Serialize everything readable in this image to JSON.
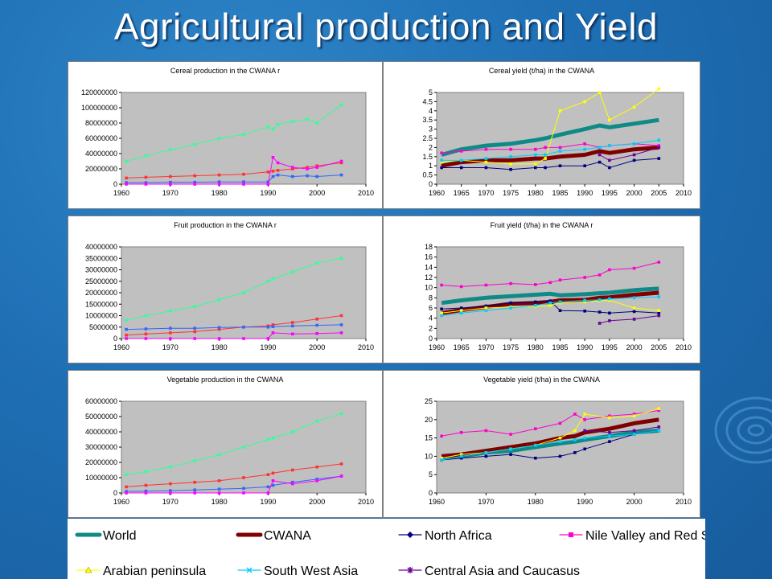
{
  "title": "Agricultural production and Yield",
  "colors": {
    "World": "#0f8a86",
    "CWANA": "#800000",
    "North Africa": "#000080",
    "Nile Valley and Red S": "#ff00cc",
    "Arabian peninsula": "#ffff00",
    "South West Asia": "#00ccff",
    "Central Asia and Caucasus": "#660099",
    "Prod Green": "#33ff99",
    "Prod Red": "#ff3333",
    "Prod Blue": "#3366ff",
    "Prod Magenta": "#ff00ff"
  },
  "legend": [
    {
      "label": "World",
      "marker": "thick",
      "color": "#0f8a86"
    },
    {
      "label": "CWANA",
      "marker": "thick",
      "color": "#800000"
    },
    {
      "label": "North Africa",
      "marker": "diamond",
      "color": "#000080"
    },
    {
      "label": "Nile Valley and Red S",
      "marker": "square",
      "color": "#ff00cc"
    },
    {
      "label": "Arabian peninsula",
      "marker": "triangle",
      "color": "#ffff00"
    },
    {
      "label": "South West Asia",
      "marker": "cross",
      "color": "#00ccff"
    },
    {
      "label": "Central Asia and Caucasus",
      "marker": "star",
      "color": "#660099"
    }
  ],
  "chart_data": [
    {
      "type": "line",
      "title": "Cereal production in the CWANA r",
      "x": [
        1961,
        1965,
        1970,
        1975,
        1980,
        1985,
        1990,
        1991,
        1992,
        1995,
        1998,
        2000,
        2005
      ],
      "xticks": [
        1960,
        1970,
        1980,
        1990,
        2000,
        2010
      ],
      "yticks": [
        "0",
        "20000000",
        "40000000",
        "60000000",
        "80000000",
        "100000000",
        "120000000"
      ],
      "xlim": [
        1960,
        2010
      ],
      "ylim": [
        0,
        120000000
      ],
      "series": [
        {
          "color": "Prod Green",
          "values": [
            30000000,
            37000000,
            45000000,
            52000000,
            60000000,
            65000000,
            75000000,
            72000000,
            78000000,
            82000000,
            85000000,
            80000000,
            104000000
          ]
        },
        {
          "color": "Prod Red",
          "values": [
            8000000,
            9000000,
            10000000,
            11000000,
            12000000,
            13000000,
            16000000,
            17000000,
            18000000,
            20000000,
            22000000,
            24000000,
            28000000
          ]
        },
        {
          "color": "Prod Blue",
          "values": [
            2000000,
            2000000,
            2500000,
            2500000,
            3000000,
            3000000,
            3000000,
            10000000,
            12000000,
            10000000,
            11000000,
            10000000,
            12000000
          ]
        },
        {
          "color": "Prod Magenta",
          "values": [
            0,
            0,
            0,
            0,
            0,
            0,
            0,
            35000000,
            28000000,
            22000000,
            20000000,
            22000000,
            30000000
          ]
        }
      ]
    },
    {
      "type": "line",
      "title": "Cereal yield (t/ha) in the CWANA",
      "x": [
        1961,
        1965,
        1970,
        1975,
        1980,
        1982,
        1985,
        1990,
        1993,
        1995,
        2000,
        2005
      ],
      "xticks": [
        1960,
        1965,
        1970,
        1975,
        1980,
        1985,
        1990,
        1995,
        2000,
        2005,
        2010
      ],
      "yticks": [
        "0",
        "0.5",
        "1",
        "1.5",
        "2",
        "2.5",
        "3",
        "3.5",
        "4",
        "4.5",
        "5"
      ],
      "xlim": [
        1960,
        2010
      ],
      "ylim": [
        0,
        5
      ],
      "series": [
        {
          "color": "World",
          "values": [
            1.6,
            1.9,
            2.1,
            2.2,
            2.4,
            2.5,
            2.7,
            3.0,
            3.2,
            3.1,
            3.3,
            3.5
          ]
        },
        {
          "color": "CWANA",
          "values": [
            1.0,
            1.2,
            1.3,
            1.3,
            1.4,
            1.4,
            1.5,
            1.6,
            1.8,
            1.7,
            1.9,
            2.0
          ]
        },
        {
          "color": "North Africa",
          "values": [
            0.9,
            0.9,
            0.9,
            0.8,
            0.9,
            0.9,
            1.0,
            1.0,
            1.2,
            0.9,
            1.3,
            1.4
          ]
        },
        {
          "color": "Nile Valley and Red S",
          "values": [
            1.7,
            1.8,
            1.9,
            1.9,
            1.9,
            2.0,
            2.0,
            2.2,
            2.0,
            2.1,
            2.2,
            2.1
          ]
        },
        {
          "color": "Arabian peninsula",
          "values": [
            1.2,
            1.3,
            1.2,
            1.1,
            1.1,
            1.4,
            4.0,
            4.5,
            5.0,
            3.5,
            4.2,
            5.2
          ]
        },
        {
          "color": "South West Asia",
          "values": [
            1.3,
            1.3,
            1.4,
            1.5,
            1.6,
            1.6,
            1.8,
            1.9,
            2.0,
            2.1,
            2.2,
            2.4
          ]
        },
        {
          "color": "Central Asia and Caucasus",
          "values": [
            null,
            null,
            null,
            null,
            null,
            null,
            null,
            null,
            1.6,
            1.3,
            1.6,
            2.0
          ]
        }
      ]
    },
    {
      "type": "line",
      "title": "Fruit production in the CWANA r",
      "x": [
        1961,
        1965,
        1970,
        1975,
        1980,
        1985,
        1990,
        1991,
        1995,
        2000,
        2005
      ],
      "xticks": [
        1960,
        1970,
        1980,
        1990,
        2000,
        2010
      ],
      "yticks": [
        "0",
        "5000000",
        "10000000",
        "15000000",
        "20000000",
        "25000000",
        "30000000",
        "35000000",
        "40000000"
      ],
      "xlim": [
        1960,
        2010
      ],
      "ylim": [
        0,
        40000000
      ],
      "series": [
        {
          "color": "Prod Green",
          "values": [
            8000000,
            10000000,
            12000000,
            14000000,
            17000000,
            20000000,
            25000000,
            26000000,
            29000000,
            33000000,
            35000000
          ]
        },
        {
          "color": "Prod Red",
          "values": [
            1500000,
            2000000,
            2500000,
            3000000,
            4000000,
            5000000,
            5500000,
            6000000,
            7000000,
            8500000,
            10000000
          ]
        },
        {
          "color": "Prod Blue",
          "values": [
            4000000,
            4200000,
            4500000,
            4500000,
            4800000,
            5000000,
            5000000,
            5200000,
            5500000,
            5800000,
            6000000
          ]
        },
        {
          "color": "Prod Magenta",
          "values": [
            0,
            0,
            0,
            0,
            0,
            0,
            0,
            2500000,
            2000000,
            2200000,
            2500000
          ]
        }
      ]
    },
    {
      "type": "line",
      "title": "Fruit yield (t/ha) in the CWANA r",
      "x": [
        1961,
        1965,
        1970,
        1975,
        1980,
        1983,
        1985,
        1990,
        1993,
        1995,
        2000,
        2005
      ],
      "xticks": [
        1960,
        1965,
        1970,
        1975,
        1980,
        1985,
        1990,
        1995,
        2000,
        2005,
        2010
      ],
      "yticks": [
        "0",
        "2",
        "4",
        "6",
        "8",
        "10",
        "12",
        "14",
        "16",
        "18"
      ],
      "xlim": [
        1960,
        2010
      ],
      "ylim": [
        0,
        18
      ],
      "series": [
        {
          "color": "World",
          "values": [
            7.0,
            7.5,
            8.0,
            8.3,
            8.6,
            8.8,
            8.5,
            8.7,
            8.9,
            9.0,
            9.5,
            9.8
          ]
        },
        {
          "color": "CWANA",
          "values": [
            5.0,
            5.6,
            6.2,
            6.8,
            7.0,
            7.2,
            7.5,
            7.6,
            8.0,
            8.1,
            8.6,
            9.0
          ]
        },
        {
          "color": "North Africa",
          "values": [
            5.8,
            6.0,
            6.4,
            7.0,
            7.2,
            7.4,
            5.5,
            5.4,
            5.2,
            5.0,
            5.3,
            5.0
          ]
        },
        {
          "color": "Nile Valley and Red S",
          "values": [
            10.5,
            10.2,
            10.5,
            10.8,
            10.6,
            11.0,
            11.5,
            12.0,
            12.5,
            13.5,
            13.8,
            15.0
          ]
        },
        {
          "color": "Arabian peninsula",
          "values": [
            5.0,
            5.5,
            6.0,
            6.2,
            6.3,
            6.5,
            7.0,
            7.2,
            7.4,
            7.5,
            6.0,
            5.5
          ]
        },
        {
          "color": "South West Asia",
          "values": [
            4.5,
            5.0,
            5.5,
            6.0,
            6.5,
            7.0,
            7.2,
            7.5,
            7.6,
            7.8,
            8.0,
            8.2
          ]
        },
        {
          "color": "Central Asia and Caucasus",
          "values": [
            null,
            null,
            null,
            null,
            null,
            null,
            null,
            null,
            3.0,
            3.5,
            3.8,
            4.5
          ]
        }
      ]
    },
    {
      "type": "line",
      "title": "Vegetable production in the CWANA",
      "x": [
        1961,
        1965,
        1970,
        1975,
        1980,
        1985,
        1990,
        1991,
        1995,
        2000,
        2005
      ],
      "xticks": [
        1960,
        1970,
        1980,
        1990,
        2000,
        2010
      ],
      "yticks": [
        "0",
        "10000000",
        "20000000",
        "30000000",
        "40000000",
        "50000000",
        "60000000"
      ],
      "xlim": [
        1960,
        2010
      ],
      "ylim": [
        0,
        60000000
      ],
      "series": [
        {
          "color": "Prod Green",
          "values": [
            12000000,
            14000000,
            17000000,
            21000000,
            25000000,
            30000000,
            35000000,
            36000000,
            40000000,
            47000000,
            52000000
          ]
        },
        {
          "color": "Prod Red",
          "values": [
            4000000,
            5000000,
            6000000,
            7000000,
            8000000,
            10000000,
            12000000,
            13000000,
            15000000,
            17000000,
            19000000
          ]
        },
        {
          "color": "Prod Blue",
          "values": [
            1000000,
            1200000,
            1500000,
            2000000,
            2500000,
            3000000,
            4000000,
            5000000,
            7000000,
            9000000,
            11000000
          ]
        },
        {
          "color": "Prod Magenta",
          "values": [
            0,
            0,
            0,
            0,
            0,
            0,
            0,
            8000000,
            6000000,
            8000000,
            11000000
          ]
        }
      ]
    },
    {
      "type": "line",
      "title": "Vegetable yield (t/ha) in the CWANA",
      "x": [
        1961,
        1965,
        1970,
        1975,
        1980,
        1985,
        1988,
        1990,
        1995,
        2000,
        2005
      ],
      "xticks": [
        1960,
        1970,
        1980,
        1990,
        2000,
        2010
      ],
      "yticks": [
        "0",
        "5",
        "10",
        "15",
        "20",
        "25"
      ],
      "xlim": [
        1960,
        2010
      ],
      "ylim": [
        0,
        25
      ],
      "series": [
        {
          "color": "World",
          "values": [
            9.5,
            10.0,
            11.0,
            11.5,
            12.5,
            13.5,
            14.0,
            14.5,
            15.5,
            16.5,
            17.0
          ]
        },
        {
          "color": "CWANA",
          "values": [
            10.0,
            10.5,
            11.5,
            12.5,
            13.5,
            15.0,
            15.5,
            16.5,
            17.5,
            19.0,
            20.0
          ]
        },
        {
          "color": "North Africa",
          "values": [
            9.0,
            9.5,
            10.0,
            10.5,
            9.5,
            10.0,
            11.0,
            12.0,
            14.0,
            16.0,
            17.0
          ]
        },
        {
          "color": "Nile Valley and Red S",
          "values": [
            15.5,
            16.5,
            17.0,
            16.0,
            17.5,
            19.0,
            21.5,
            20.0,
            21.0,
            21.5,
            22.5
          ]
        },
        {
          "color": "Arabian peninsula",
          "values": [
            9.5,
            10.5,
            11.0,
            12.0,
            13.0,
            15.0,
            17.0,
            21.5,
            20.5,
            21.0,
            23.0
          ]
        },
        {
          "color": "South West Asia",
          "values": [
            9.0,
            10.0,
            11.0,
            12.0,
            13.0,
            14.0,
            14.5,
            15.0,
            15.5,
            16.0,
            17.0
          ]
        },
        {
          "color": "Central Asia and Caucasus",
          "values": [
            null,
            null,
            null,
            null,
            null,
            null,
            null,
            17.0,
            16.5,
            17.0,
            18.0
          ]
        }
      ]
    }
  ]
}
